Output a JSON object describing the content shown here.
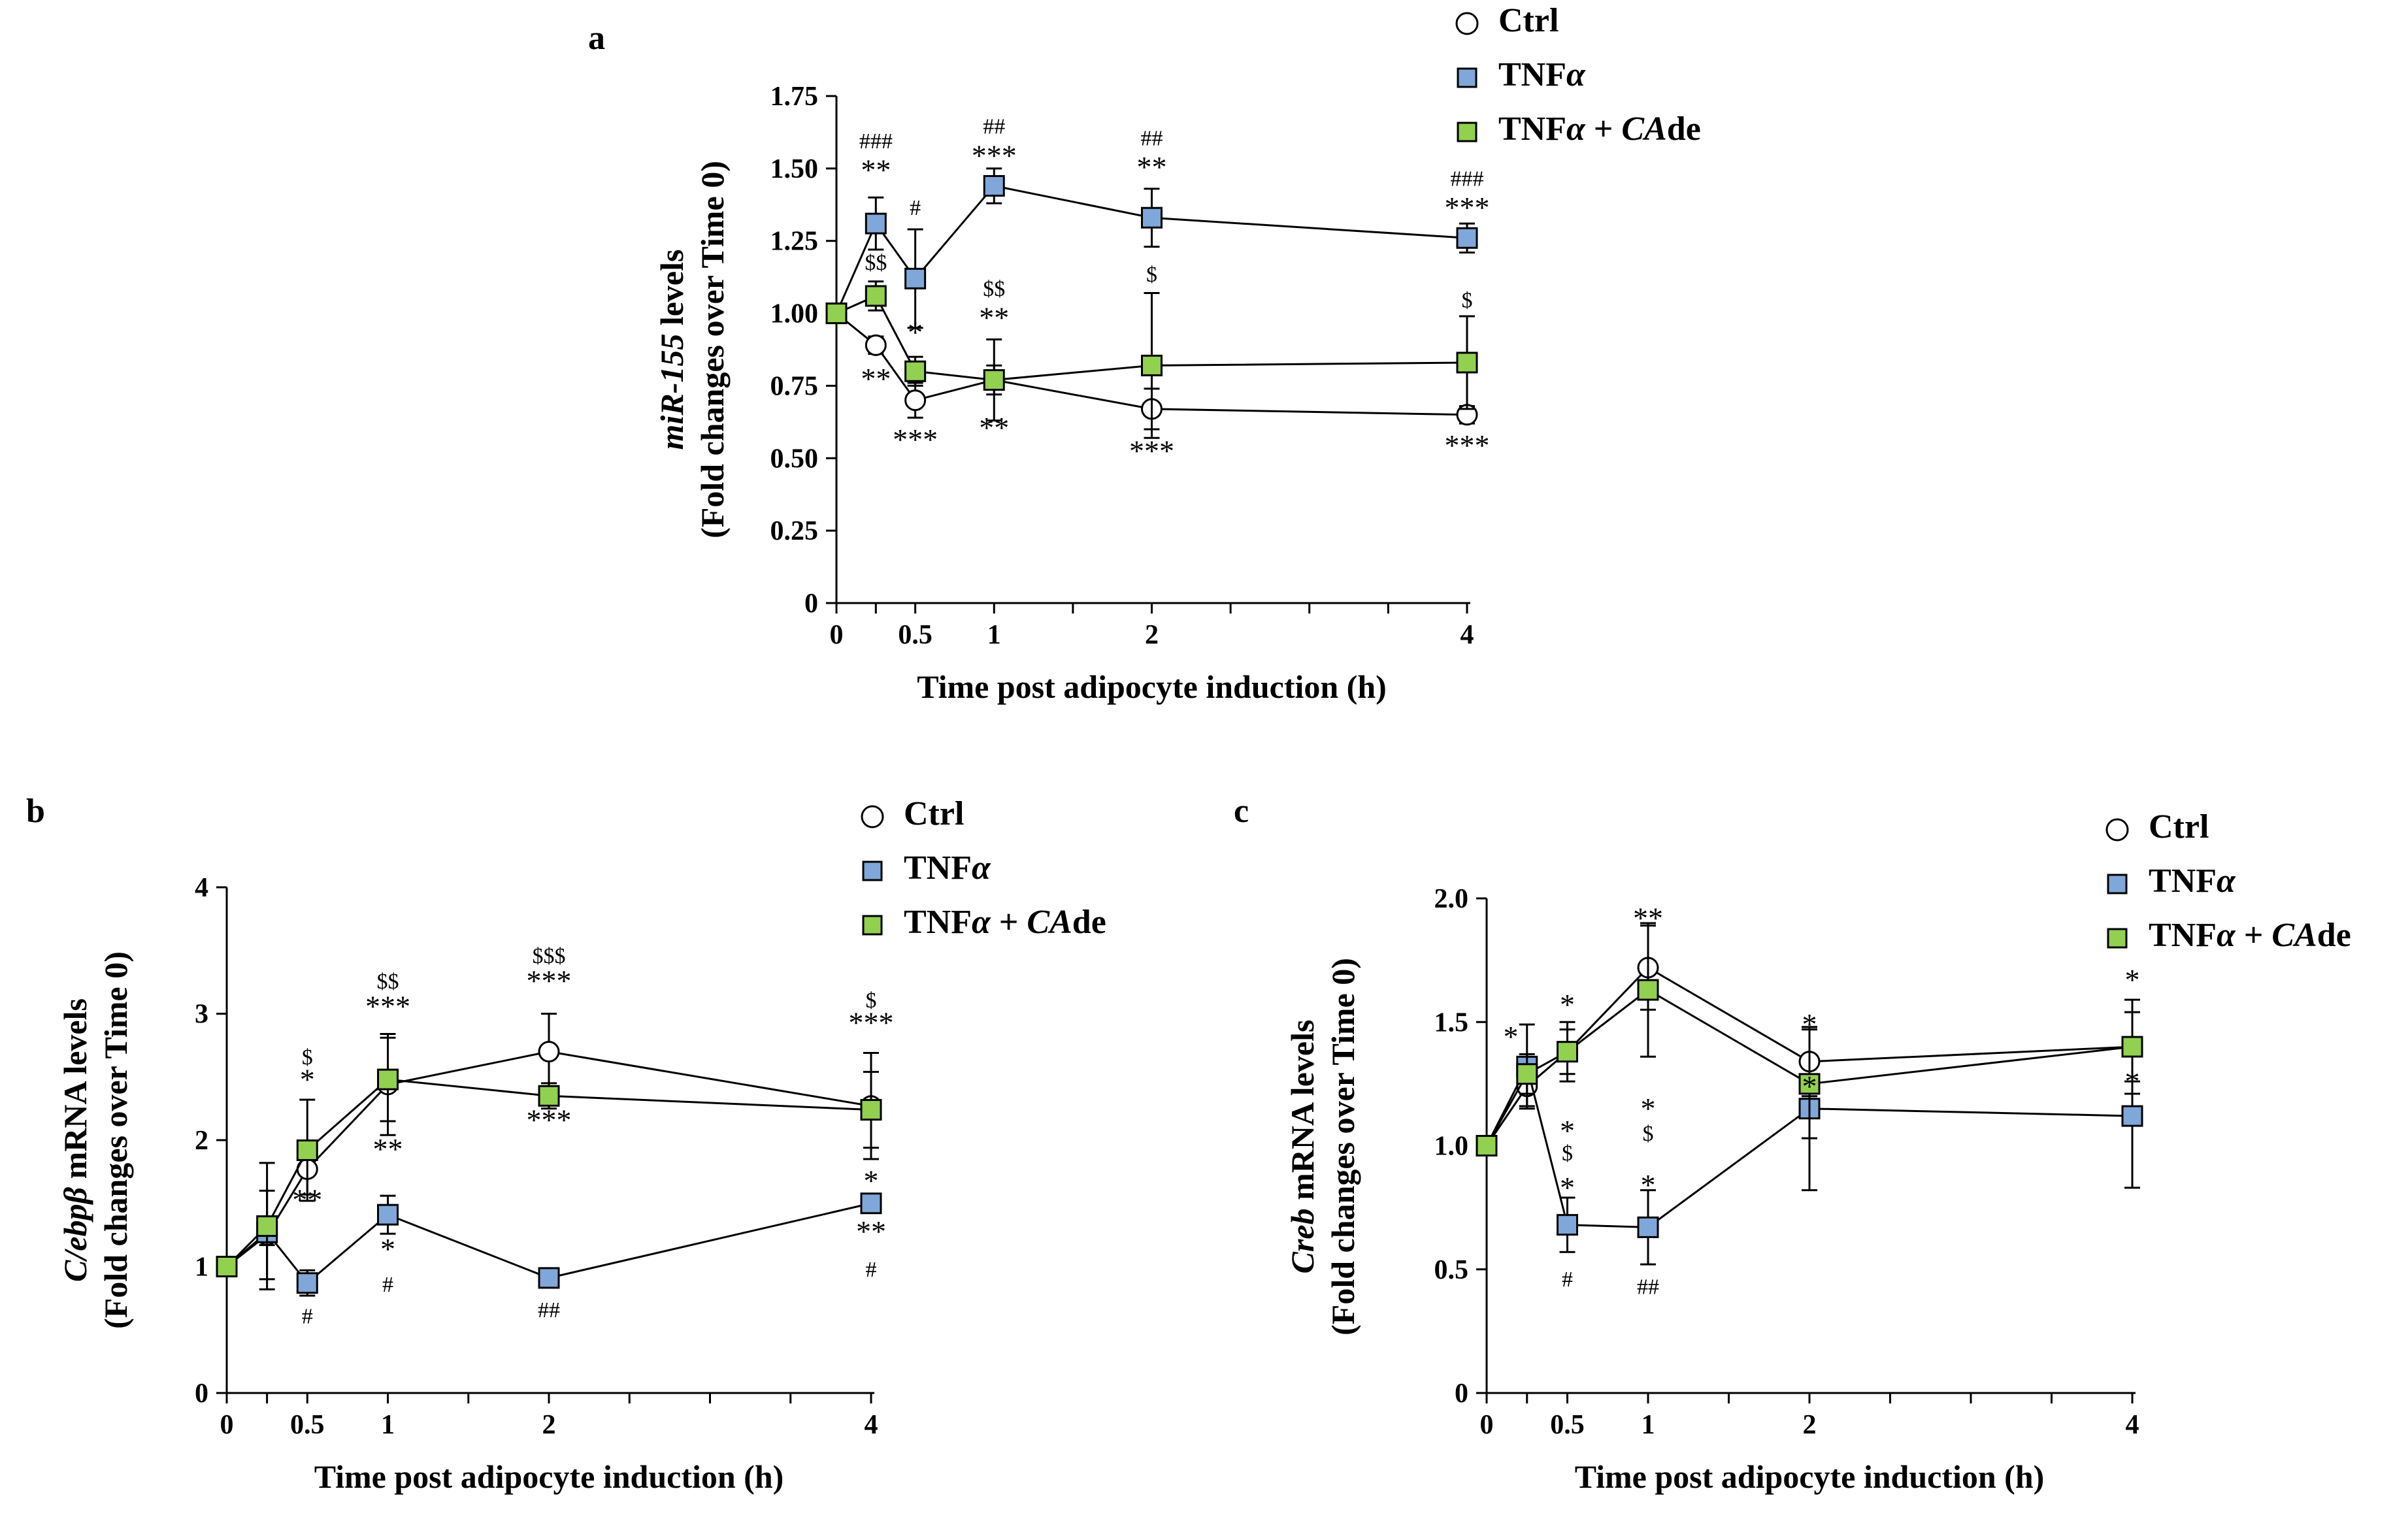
{
  "figure": {
    "colors": {
      "ctrl": "#ffffff",
      "tnf": "#7fa7d9",
      "tnf_cade": "#92d050",
      "stroke": "#000000"
    }
  },
  "chart_data": [
    {
      "id": "a",
      "type": "line",
      "panel_label": "a",
      "ylabel_italic": "miR-155",
      "ylabel_rest": " levels",
      "ylabel_line2": "(Fold changes over Time 0)",
      "xlabel": "Time post adipocyte induction (h)",
      "ylim": [
        0,
        1.75
      ],
      "yticks": [
        0,
        0.25,
        0.5,
        0.75,
        1.0,
        1.25,
        1.5,
        1.75
      ],
      "ytick_labels": [
        "0",
        "0.25",
        "0.50",
        "0.75",
        "1.00",
        "1.25",
        "1.50",
        "1.75"
      ],
      "xlim": [
        0,
        4
      ],
      "xticks": [
        0,
        0.5,
        1,
        2,
        4
      ],
      "xtick_labels": [
        "0",
        "0.5",
        "1",
        "2",
        "4"
      ],
      "xminor": [
        0.25,
        1.5,
        2.5,
        3,
        3.5
      ],
      "legend": {
        "position": "top-right",
        "entries": [
          {
            "key": "ctrl",
            "label": "Ctrl",
            "italic": ""
          },
          {
            "key": "tnf",
            "label": "TNF",
            "italic": "α"
          },
          {
            "key": "tnf_cade",
            "label": "TNF",
            "italic": "α",
            "rest": " + ",
            "italic2": "CA",
            "rest2": "de"
          }
        ]
      },
      "series": [
        {
          "name": "Ctrl",
          "key": "ctrl",
          "marker": "circle",
          "x": [
            0,
            0.25,
            0.5,
            1,
            2,
            4
          ],
          "y": [
            1.0,
            0.89,
            0.7,
            0.77,
            0.67,
            0.65
          ],
          "err": [
            0,
            0.03,
            0.06,
            0.05,
            0.07,
            0.03
          ]
        },
        {
          "name": "TNFα",
          "key": "tnf",
          "marker": "square",
          "x": [
            0,
            0.25,
            0.5,
            1,
            2,
            4
          ],
          "y": [
            1.0,
            1.31,
            1.12,
            1.44,
            1.33,
            1.26
          ],
          "err": [
            0,
            0.09,
            0.17,
            0.06,
            0.1,
            0.05
          ]
        },
        {
          "name": "TNFα + CAde",
          "key": "tnf_cade",
          "marker": "square",
          "x": [
            0,
            0.25,
            0.5,
            1,
            2,
            4
          ],
          "y": [
            1.0,
            1.06,
            0.8,
            0.77,
            0.82,
            0.83
          ],
          "err": [
            0,
            0.05,
            0.05,
            0.14,
            0.25,
            0.16
          ]
        }
      ],
      "annotations": [
        {
          "text": "###",
          "x": 0.25,
          "y": 1.57,
          "size": "small"
        },
        {
          "text": "**",
          "x": 0.25,
          "y": 1.46,
          "size": "big"
        },
        {
          "text": "#",
          "x": 0.5,
          "y": 1.34,
          "size": "small"
        },
        {
          "text": "$$",
          "x": 0.25,
          "y": 1.15,
          "size": "small"
        },
        {
          "text": "*",
          "x": 0.5,
          "y": 0.9,
          "size": "big"
        },
        {
          "text": "**",
          "x": 0.25,
          "y": 0.74,
          "size": "big"
        },
        {
          "text": "***",
          "x": 0.5,
          "y": 0.53,
          "size": "big"
        },
        {
          "text": "##",
          "x": 1,
          "y": 1.62,
          "size": "small"
        },
        {
          "text": "***",
          "x": 1,
          "y": 1.51,
          "size": "big"
        },
        {
          "text": "$$",
          "x": 1,
          "y": 1.06,
          "size": "small"
        },
        {
          "text": "**",
          "x": 1,
          "y": 0.95,
          "size": "big"
        },
        {
          "text": "**",
          "x": 1,
          "y": 0.57,
          "size": "big"
        },
        {
          "text": "##",
          "x": 2,
          "y": 1.58,
          "size": "small"
        },
        {
          "text": "**",
          "x": 2,
          "y": 1.47,
          "size": "big"
        },
        {
          "text": "$",
          "x": 2,
          "y": 1.11,
          "size": "small"
        },
        {
          "text": "***",
          "x": 2,
          "y": 0.49,
          "size": "big"
        },
        {
          "text": "###",
          "x": 4,
          "y": 1.44,
          "size": "small"
        },
        {
          "text": "***",
          "x": 4,
          "y": 1.33,
          "size": "big"
        },
        {
          "text": "$",
          "x": 4,
          "y": 1.02,
          "size": "small"
        },
        {
          "text": "***",
          "x": 4,
          "y": 0.51,
          "size": "big"
        }
      ]
    },
    {
      "id": "b",
      "type": "line",
      "panel_label": "b",
      "ylabel_italic": "C/ebpβ",
      "ylabel_rest": " mRNA levels",
      "ylabel_line2": "(Fold changes over Time 0)",
      "xlabel": "Time post adipocyte induction (h)",
      "ylim": [
        0,
        4
      ],
      "yticks": [
        0,
        1,
        2,
        3,
        4
      ],
      "ytick_labels": [
        "0",
        "1",
        "2",
        "3",
        "4"
      ],
      "xlim": [
        0,
        4
      ],
      "xticks": [
        0,
        0.5,
        1,
        2,
        4
      ],
      "xtick_labels": [
        "0",
        "0.5",
        "1",
        "2",
        "4"
      ],
      "xminor": [
        0.25,
        1.5,
        2.5,
        3,
        3.5
      ],
      "legend": {
        "position": "top-right",
        "entries": [
          {
            "key": "ctrl",
            "label": "Ctrl",
            "italic": ""
          },
          {
            "key": "tnf",
            "label": "TNF",
            "italic": "α"
          },
          {
            "key": "tnf_cade",
            "label": "TNF",
            "italic": "α",
            "rest": " + ",
            "italic2": "CA",
            "rest2": "de"
          }
        ]
      },
      "series": [
        {
          "name": "Ctrl",
          "key": "ctrl",
          "marker": "circle",
          "x": [
            0,
            0.25,
            0.5,
            1,
            2,
            4
          ],
          "y": [
            1.0,
            1.25,
            1.77,
            2.44,
            2.7,
            2.27
          ],
          "err": [
            0,
            0.35,
            0.2,
            0.4,
            0.3,
            0.42
          ]
        },
        {
          "name": "TNFα",
          "key": "tnf",
          "marker": "square",
          "x": [
            0,
            0.25,
            0.5,
            1,
            2,
            4
          ],
          "y": [
            1.0,
            1.27,
            0.87,
            1.41,
            0.91,
            1.5
          ],
          "err": [
            0,
            0.1,
            0.1,
            0.15,
            0.06,
            0.06
          ]
        },
        {
          "name": "TNFα + CAde",
          "key": "tnf_cade",
          "marker": "square",
          "x": [
            0,
            0.25,
            0.5,
            1,
            2,
            4
          ],
          "y": [
            1.0,
            1.32,
            1.92,
            2.48,
            2.35,
            2.24
          ],
          "err": [
            0,
            0.5,
            0.4,
            0.33,
            0.1,
            0.3
          ]
        }
      ],
      "annotations": [
        {
          "text": "$",
          "x": 0.5,
          "y": 2.6,
          "size": "small"
        },
        {
          "text": "*",
          "x": 0.5,
          "y": 2.4,
          "size": "big"
        },
        {
          "text": "**",
          "x": 0.5,
          "y": 1.45,
          "size": "big"
        },
        {
          "text": "#",
          "x": 0.5,
          "y": 0.55,
          "size": "small"
        },
        {
          "text": "$$",
          "x": 1,
          "y": 3.2,
          "size": "small"
        },
        {
          "text": "***",
          "x": 1,
          "y": 2.98,
          "size": "big"
        },
        {
          "text": "**",
          "x": 1,
          "y": 1.85,
          "size": "big"
        },
        {
          "text": "*",
          "x": 1,
          "y": 1.06,
          "size": "big"
        },
        {
          "text": "#",
          "x": 1,
          "y": 0.8,
          "size": "small"
        },
        {
          "text": "$$$",
          "x": 2,
          "y": 3.4,
          "size": "small"
        },
        {
          "text": "***",
          "x": 2,
          "y": 3.18,
          "size": "big"
        },
        {
          "text": "***",
          "x": 2,
          "y": 2.08,
          "size": "big"
        },
        {
          "text": "##",
          "x": 2,
          "y": 0.6,
          "size": "small"
        },
        {
          "text": "$",
          "x": 4,
          "y": 3.05,
          "size": "small"
        },
        {
          "text": "***",
          "x": 4,
          "y": 2.85,
          "size": "big"
        },
        {
          "text": "*",
          "x": 4,
          "y": 1.6,
          "size": "big"
        },
        {
          "text": "**",
          "x": 4,
          "y": 1.2,
          "size": "big"
        },
        {
          "text": "#",
          "x": 4,
          "y": 0.92,
          "size": "small"
        }
      ]
    },
    {
      "id": "c",
      "type": "line",
      "panel_label": "c",
      "ylabel_italic": "Creb",
      "ylabel_rest": " mRNA levels",
      "ylabel_line2": "(Fold changes over Time 0)",
      "xlabel": "Time post adipocyte induction (h)",
      "ylim": [
        0,
        2.0
      ],
      "yticks": [
        0,
        0.5,
        1.0,
        1.5,
        2.0
      ],
      "ytick_labels": [
        "0",
        "0.5",
        "1.0",
        "1.5",
        "2.0"
      ],
      "xlim": [
        0,
        4
      ],
      "xticks": [
        0,
        0.5,
        1,
        2,
        4
      ],
      "xtick_labels": [
        "0",
        "0.5",
        "1",
        "2",
        "4"
      ],
      "xminor": [
        0.25,
        1.5,
        2.5,
        3,
        3.5
      ],
      "legend": {
        "position": "top-right",
        "entries": [
          {
            "key": "ctrl",
            "label": "Ctrl",
            "italic": ""
          },
          {
            "key": "tnf",
            "label": "TNF",
            "italic": "α"
          },
          {
            "key": "tnf_cade",
            "label": "TNF",
            "italic": "α",
            "rest": " + ",
            "italic2": "CA",
            "rest2": "de"
          }
        ]
      },
      "series": [
        {
          "name": "Ctrl",
          "key": "ctrl",
          "marker": "circle",
          "x": [
            0,
            0.25,
            0.5,
            1,
            2,
            4
          ],
          "y": [
            1.0,
            1.24,
            1.38,
            1.72,
            1.34,
            1.4
          ],
          "err": [
            0,
            0.08,
            0.12,
            0.17,
            0.14,
            0.14
          ]
        },
        {
          "name": "TNFα",
          "key": "tnf",
          "marker": "square",
          "x": [
            0,
            0.25,
            0.5,
            1,
            2,
            4
          ],
          "y": [
            1.0,
            1.32,
            0.68,
            0.67,
            1.15,
            1.12
          ],
          "err": [
            0,
            0.17,
            0.11,
            0.15,
            0.33,
            0.29
          ]
        },
        {
          "name": "TNFα + CAde",
          "key": "tnf_cade",
          "marker": "square",
          "x": [
            0,
            0.25,
            0.5,
            1,
            2,
            4
          ],
          "y": [
            1.0,
            1.29,
            1.38,
            1.63,
            1.25,
            1.4
          ],
          "err": [
            0,
            0.08,
            0.09,
            0.27,
            0.22,
            0.19
          ]
        }
      ],
      "annotations": [
        {
          "text": "*",
          "x": 0.15,
          "y": 1.4,
          "size": "big"
        },
        {
          "text": "*",
          "x": 0.5,
          "y": 1.53,
          "size": "big"
        },
        {
          "text": "*",
          "x": 0.5,
          "y": 1.02,
          "size": "big"
        },
        {
          "text": "$",
          "x": 0.5,
          "y": 0.94,
          "size": "small"
        },
        {
          "text": "*",
          "x": 0.5,
          "y": 0.79,
          "size": "big"
        },
        {
          "text": "#",
          "x": 0.5,
          "y": 0.43,
          "size": "small"
        },
        {
          "text": "**",
          "x": 1,
          "y": 1.88,
          "size": "big"
        },
        {
          "text": "*",
          "x": 1,
          "y": 1.11,
          "size": "big"
        },
        {
          "text": "$",
          "x": 1,
          "y": 1.02,
          "size": "small"
        },
        {
          "text": "*",
          "x": 1,
          "y": 0.8,
          "size": "big"
        },
        {
          "text": "##",
          "x": 1,
          "y": 0.4,
          "size": "small"
        },
        {
          "text": "*",
          "x": 2,
          "y": 1.45,
          "size": "big"
        },
        {
          "text": "*",
          "x": 2,
          "y": 1.2,
          "size": "big"
        },
        {
          "text": "*",
          "x": 4,
          "y": 1.63,
          "size": "big"
        },
        {
          "text": "*",
          "x": 4,
          "y": 1.22,
          "size": "big"
        }
      ]
    }
  ]
}
